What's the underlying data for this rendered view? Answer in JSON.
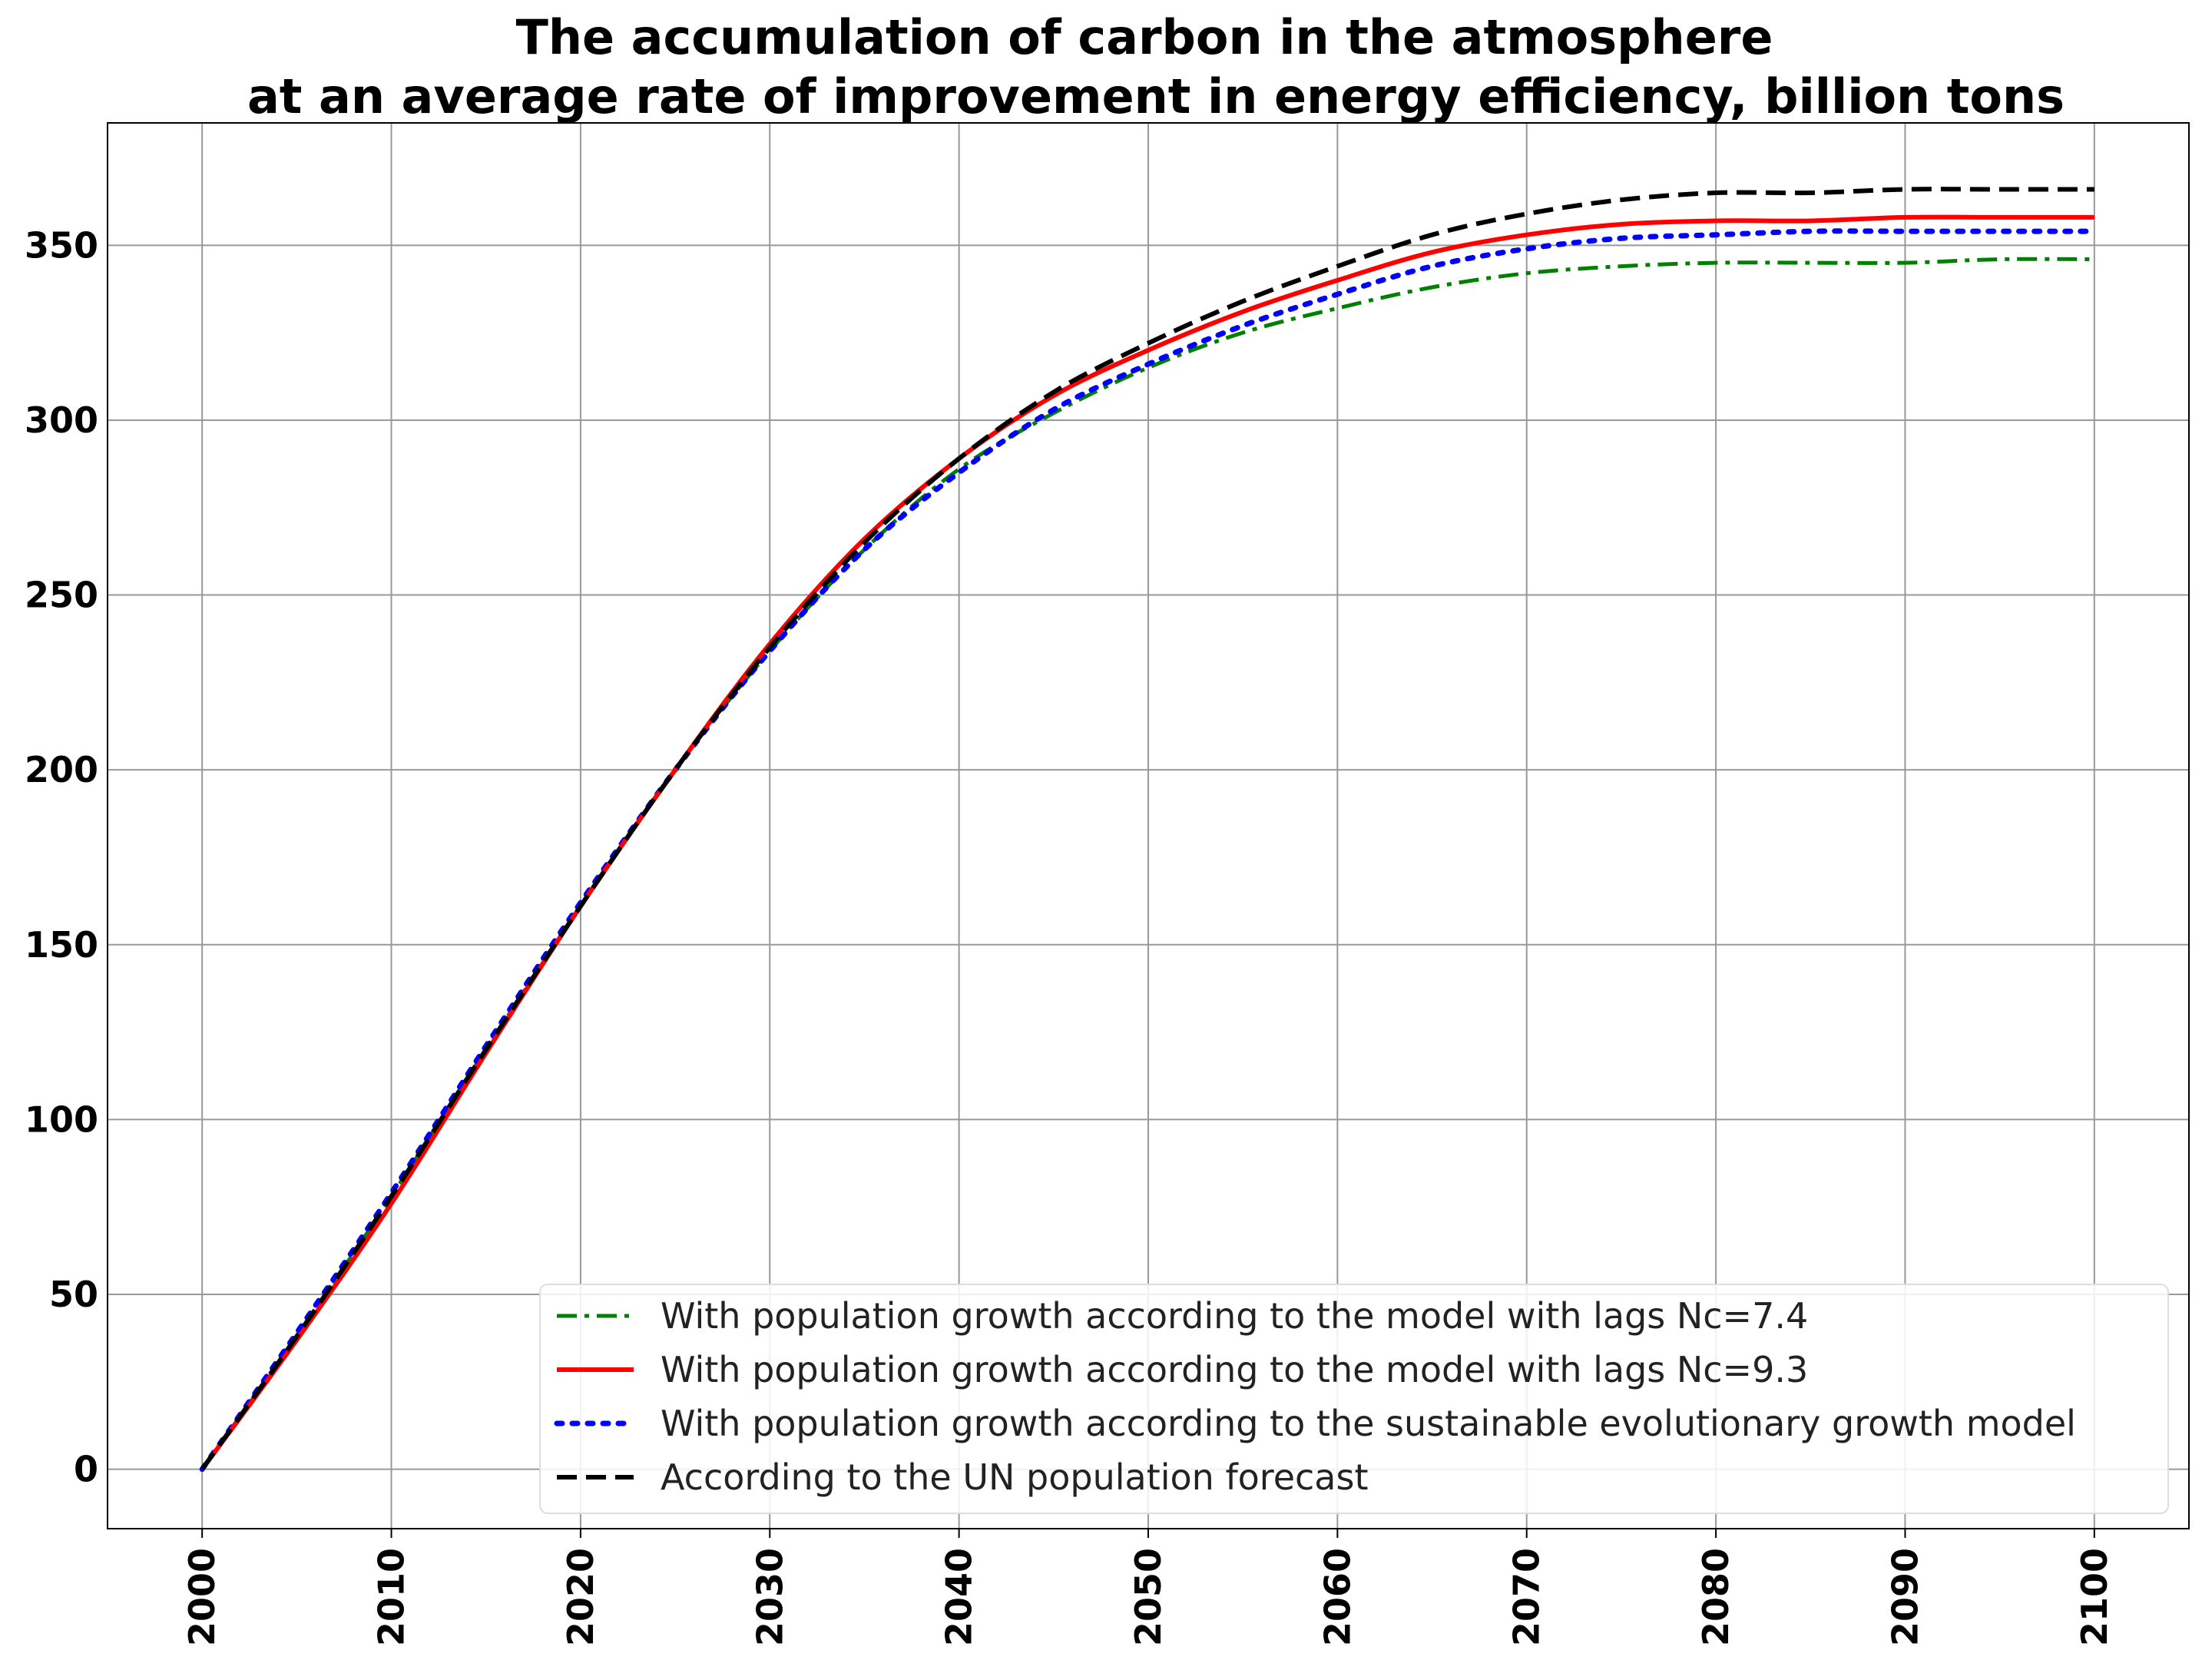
{
  "chart_data": {
    "type": "line",
    "title": [
      "The accumulation of carbon in the atmosphere",
      "at an average rate of improvement in energy efficiency, billion tons"
    ],
    "xlabel": "",
    "ylabel": "",
    "xlim": [
      1995,
      2105
    ],
    "ylim": [
      -17,
      385
    ],
    "x_ticks": [
      2000,
      2010,
      2020,
      2030,
      2040,
      2050,
      2060,
      2070,
      2080,
      2090,
      2100
    ],
    "y_ticks": [
      0,
      50,
      100,
      150,
      200,
      250,
      300,
      350
    ],
    "grid": true,
    "legend_position": "lower-right",
    "x": [
      2000,
      2005,
      2010,
      2015,
      2020,
      2025,
      2030,
      2035,
      2040,
      2045,
      2050,
      2055,
      2060,
      2065,
      2070,
      2075,
      2080,
      2085,
      2090,
      2095,
      2100
    ],
    "series": [
      {
        "name": "With population growth according to the model with lags Nc=7.4",
        "color": "#008000",
        "style": "dashdot",
        "values": [
          0,
          38,
          78,
          120,
          161,
          200,
          234,
          263,
          286,
          302,
          315,
          325,
          332,
          338,
          342,
          344,
          345,
          345,
          345,
          346,
          346
        ]
      },
      {
        "name": "With population growth according to the model with lags Nc=9.3",
        "color": "#ff0000",
        "style": "solid",
        "values": [
          0,
          37,
          76,
          119,
          161,
          200,
          236,
          266,
          289,
          307,
          320,
          331,
          340,
          348,
          353,
          356,
          357,
          357,
          358,
          358,
          358
        ]
      },
      {
        "name": "With population growth according to the sustainable evolutionary growth model",
        "color": "#0000ff",
        "style": "dotted",
        "values": [
          0,
          39,
          79,
          121,
          162,
          200,
          234,
          263,
          285,
          303,
          316,
          327,
          336,
          344,
          349,
          352,
          353,
          354,
          354,
          354,
          354
        ]
      },
      {
        "name": "According to the UN population forecast",
        "color": "#000000",
        "style": "dashed",
        "values": [
          0,
          38,
          78,
          120,
          161,
          200,
          235,
          265,
          289,
          308,
          322,
          334,
          344,
          353,
          359,
          363,
          365,
          365,
          366,
          366,
          366
        ]
      }
    ]
  }
}
